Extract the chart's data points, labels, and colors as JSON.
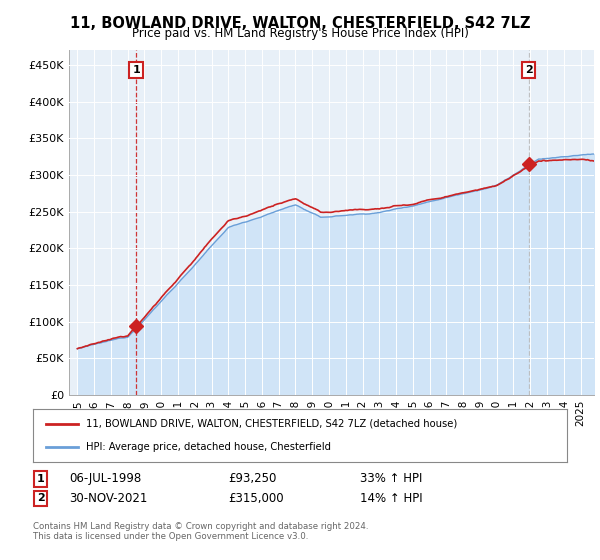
{
  "title": "11, BOWLAND DRIVE, WALTON, CHESTERFIELD, S42 7LZ",
  "subtitle": "Price paid vs. HM Land Registry's House Price Index (HPI)",
  "legend_line1": "11, BOWLAND DRIVE, WALTON, CHESTERFIELD, S42 7LZ (detached house)",
  "legend_line2": "HPI: Average price, detached house, Chesterfield",
  "transaction1_date": "06-JUL-1998",
  "transaction1_price": "£93,250",
  "transaction1_hpi": "33% ↑ HPI",
  "transaction2_date": "30-NOV-2021",
  "transaction2_price": "£315,000",
  "transaction2_hpi": "14% ↑ HPI",
  "footer": "Contains HM Land Registry data © Crown copyright and database right 2024.\nThis data is licensed under the Open Government Licence v3.0.",
  "hpi_color": "#6a9fd8",
  "hpi_fill_color": "#d0e4f7",
  "price_color": "#cc2222",
  "vline1_color": "#cc2222",
  "vline2_color": "#bbbbbb",
  "plot_bg": "#e8f0f8",
  "ylim": [
    0,
    470000
  ],
  "yticks": [
    0,
    50000,
    100000,
    150000,
    200000,
    250000,
    300000,
    350000,
    400000,
    450000
  ],
  "ytick_labels": [
    "£0",
    "£50K",
    "£100K",
    "£150K",
    "£200K",
    "£250K",
    "£300K",
    "£350K",
    "£400K",
    "£450K"
  ],
  "transaction1_x": 1998.5,
  "transaction1_y": 93250,
  "transaction2_x": 2021.9,
  "transaction2_y": 315000,
  "xlim_start": 1994.5,
  "xlim_end": 2025.8
}
